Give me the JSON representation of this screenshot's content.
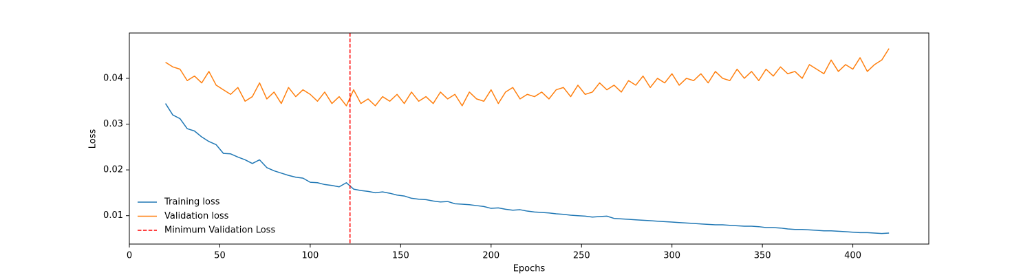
{
  "chart_data": {
    "type": "line",
    "xlabel": "Epochs",
    "ylabel": "Loss",
    "x": [
      20,
      24,
      28,
      32,
      36,
      40,
      44,
      48,
      52,
      56,
      60,
      64,
      68,
      72,
      76,
      80,
      84,
      88,
      92,
      96,
      100,
      104,
      108,
      112,
      116,
      120,
      124,
      128,
      132,
      136,
      140,
      144,
      148,
      152,
      156,
      160,
      164,
      168,
      172,
      176,
      180,
      184,
      188,
      192,
      196,
      200,
      204,
      208,
      212,
      216,
      220,
      224,
      228,
      232,
      236,
      240,
      244,
      248,
      252,
      256,
      260,
      264,
      268,
      272,
      276,
      280,
      284,
      288,
      292,
      296,
      300,
      304,
      308,
      312,
      316,
      320,
      324,
      328,
      332,
      336,
      340,
      344,
      348,
      352,
      356,
      360,
      364,
      368,
      372,
      376,
      380,
      384,
      388,
      392,
      396,
      400,
      404,
      408,
      412,
      416,
      420
    ],
    "series": [
      {
        "name": "Training loss",
        "color": "#1f77b4",
        "values": [
          0.0345,
          0.032,
          0.0312,
          0.029,
          0.0285,
          0.0272,
          0.0262,
          0.0255,
          0.0236,
          0.0235,
          0.0228,
          0.0222,
          0.0214,
          0.0222,
          0.0205,
          0.0198,
          0.0193,
          0.0188,
          0.0184,
          0.0182,
          0.0173,
          0.0172,
          0.0168,
          0.0166,
          0.0163,
          0.0172,
          0.0158,
          0.0155,
          0.0153,
          0.015,
          0.0152,
          0.0149,
          0.0145,
          0.0143,
          0.0138,
          0.0136,
          0.0135,
          0.0132,
          0.013,
          0.0131,
          0.0126,
          0.0125,
          0.0124,
          0.0122,
          0.012,
          0.0116,
          0.0117,
          0.0114,
          0.0112,
          0.0113,
          0.011,
          0.0108,
          0.0107,
          0.0106,
          0.0104,
          0.0103,
          0.0101,
          0.01,
          0.0099,
          0.0097,
          0.0098,
          0.0099,
          0.0094,
          0.0093,
          0.0092,
          0.0091,
          0.009,
          0.0089,
          0.0088,
          0.0087,
          0.0086,
          0.0085,
          0.0084,
          0.0083,
          0.0082,
          0.0081,
          0.008,
          0.008,
          0.0079,
          0.0078,
          0.0077,
          0.0077,
          0.0076,
          0.0074,
          0.0074,
          0.0073,
          0.0071,
          0.007,
          0.007,
          0.0069,
          0.0068,
          0.0067,
          0.0067,
          0.0066,
          0.0065,
          0.0064,
          0.0063,
          0.0063,
          0.0062,
          0.0061,
          0.0062
        ]
      },
      {
        "name": "Validation loss",
        "color": "#ff7f0e",
        "values": [
          0.0435,
          0.0425,
          0.042,
          0.0395,
          0.0405,
          0.039,
          0.0415,
          0.0385,
          0.0375,
          0.0365,
          0.038,
          0.035,
          0.036,
          0.039,
          0.0355,
          0.037,
          0.0345,
          0.038,
          0.036,
          0.0375,
          0.0365,
          0.035,
          0.037,
          0.0345,
          0.036,
          0.034,
          0.0375,
          0.0345,
          0.0355,
          0.034,
          0.036,
          0.035,
          0.0365,
          0.0345,
          0.037,
          0.035,
          0.036,
          0.0345,
          0.037,
          0.0355,
          0.0365,
          0.034,
          0.037,
          0.0355,
          0.035,
          0.0375,
          0.0345,
          0.037,
          0.038,
          0.0355,
          0.0365,
          0.036,
          0.037,
          0.0355,
          0.0375,
          0.038,
          0.036,
          0.0385,
          0.0365,
          0.037,
          0.039,
          0.0375,
          0.0385,
          0.037,
          0.0395,
          0.0385,
          0.0405,
          0.038,
          0.04,
          0.039,
          0.041,
          0.0385,
          0.04,
          0.0395,
          0.041,
          0.039,
          0.0415,
          0.04,
          0.0395,
          0.042,
          0.04,
          0.0415,
          0.0395,
          0.042,
          0.0405,
          0.0425,
          0.041,
          0.0415,
          0.04,
          0.043,
          0.042,
          0.041,
          0.044,
          0.0415,
          0.043,
          0.042,
          0.0445,
          0.0415,
          0.043,
          0.044,
          0.0465
        ]
      }
    ],
    "vlines": [
      {
        "name": "Minimum Validation Loss",
        "x": 122,
        "color": "#ff0000"
      }
    ],
    "xlim": [
      0,
      442
    ],
    "xticks": [
      0,
      50,
      100,
      150,
      200,
      250,
      300,
      350,
      400
    ],
    "ylim": [
      0.0038,
      0.0499
    ],
    "yticks": [
      0.01,
      0.02,
      0.03,
      0.04
    ],
    "legend": "lower left"
  }
}
